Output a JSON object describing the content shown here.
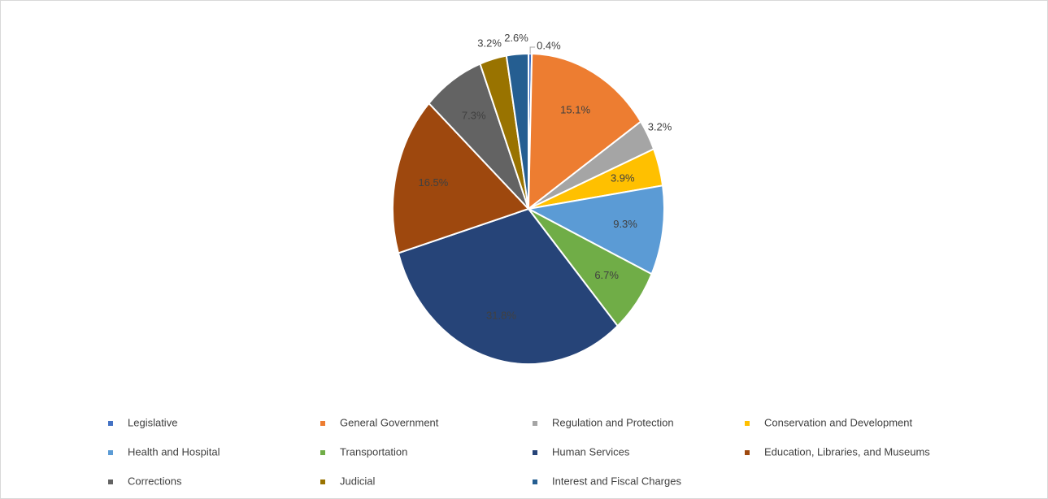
{
  "chart_data": {
    "type": "pie",
    "categories": [
      "Legislative",
      "General Government",
      "Regulation and Protection",
      "Conservation and Development",
      "Health and Hospital",
      "Transportation",
      "Human Services",
      "Education, Libraries, and Museums",
      "Corrections",
      "Judicial",
      "Interest and Fiscal Charges"
    ],
    "values": [
      0.4,
      15.1,
      3.2,
      3.9,
      9.3,
      6.7,
      31.8,
      16.5,
      7.3,
      3.2,
      2.6
    ],
    "value_labels": [
      "0.4%",
      "15.1%",
      "3.2%",
      "3.9%",
      "9.3%",
      "6.7%",
      "31.8%",
      "16.5%",
      "7.3%",
      "3.2%",
      "2.6%"
    ],
    "colors": [
      "#4472c4",
      "#ed7d31",
      "#a5a5a5",
      "#ffc000",
      "#5b9bd5",
      "#70ad47",
      "#264478",
      "#9e480e",
      "#636363",
      "#997300",
      "#255e91"
    ],
    "legend": "bottom"
  }
}
